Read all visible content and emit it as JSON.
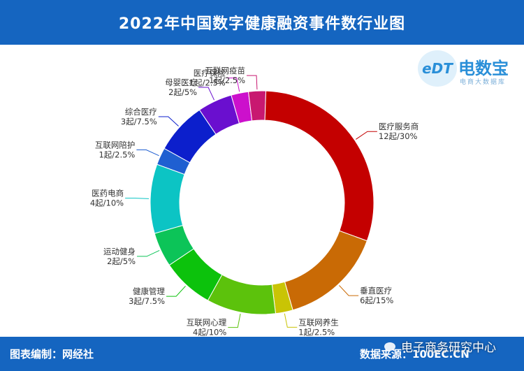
{
  "header": {
    "title": "2022年中国数字健康融资事件数行业图"
  },
  "logo": {
    "edt": "eDT",
    "name": "电数宝",
    "sub": "电商大数据库"
  },
  "footer": {
    "left": "图表编制：网经社",
    "right": "数据来源：100EC.CN"
  },
  "watermark": {
    "text": "电子商务研究中心"
  },
  "chart_data": {
    "type": "pie",
    "donut": true,
    "start_angle_deg": -70,
    "direction": "clockwise",
    "unit": "起",
    "slices": [
      {
        "name": "互联网陪护",
        "value": 1,
        "percent": "2.5%",
        "label": "1起/2.5%",
        "color": "#1f5fd1"
      },
      {
        "name": "综合医疗",
        "value": 3,
        "percent": "7.5%",
        "label": "3起/7.5%",
        "color": "#0c1fcc"
      },
      {
        "name": "母婴医疗",
        "value": 2,
        "percent": "5%",
        "label": "2起/5%",
        "color": "#6a0fcf"
      },
      {
        "name": "医疗保险",
        "value": 1,
        "percent": "2.5%",
        "label": "1起/2.5%",
        "color": "#cc10cc"
      },
      {
        "name": "互联网疫苗",
        "value": 1,
        "percent": "2.5%",
        "label": "1起/2.5%",
        "color": "#c81870"
      },
      {
        "name": "医疗服务商",
        "value": 12,
        "percent": "30%",
        "label": "12起/30%",
        "color": "#c40000"
      },
      {
        "name": "垂直医疗",
        "value": 6,
        "percent": "15%",
        "label": "6起/15%",
        "color": "#c96a05"
      },
      {
        "name": "互联网养生",
        "value": 1,
        "percent": "2.5%",
        "label": "1起/2.5%",
        "color": "#c9c405"
      },
      {
        "name": "互联网心理",
        "value": 4,
        "percent": "10%",
        "label": "4起/10%",
        "color": "#5cc20c"
      },
      {
        "name": "健康管理",
        "value": 3,
        "percent": "7.5%",
        "label": "3起/7.5%",
        "color": "#0cc20c"
      },
      {
        "name": "运动健身",
        "value": 2,
        "percent": "5%",
        "label": "2起/5%",
        "color": "#0cc458"
      },
      {
        "name": "医药电商",
        "value": 4,
        "percent": "10%",
        "label": "4起/10%",
        "color": "#0cc4c4"
      }
    ]
  }
}
